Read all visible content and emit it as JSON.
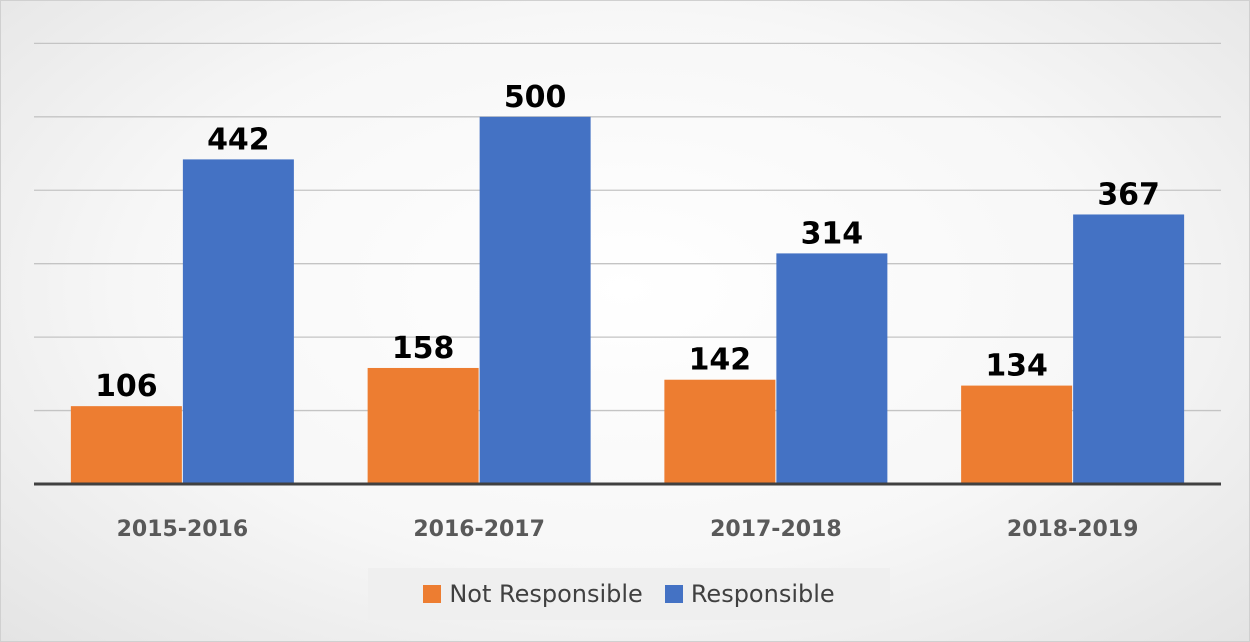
{
  "chart_data": {
    "type": "bar",
    "categories": [
      "2015-2016",
      "2016-2017",
      "2017-2018",
      "2018-2019"
    ],
    "series": [
      {
        "name": "Not Responsible",
        "color": "#ED7D31",
        "values": [
          106,
          158,
          142,
          134
        ]
      },
      {
        "name": "Responsible",
        "color": "#4472C4",
        "values": [
          442,
          500,
          314,
          367
        ]
      }
    ],
    "title": "",
    "xlabel": "",
    "ylabel": "",
    "ylim": [
      0,
      600
    ],
    "y_gridline_step": 100,
    "grid": true,
    "y_tick_labels_shown": false,
    "legend_position": "bottom"
  }
}
